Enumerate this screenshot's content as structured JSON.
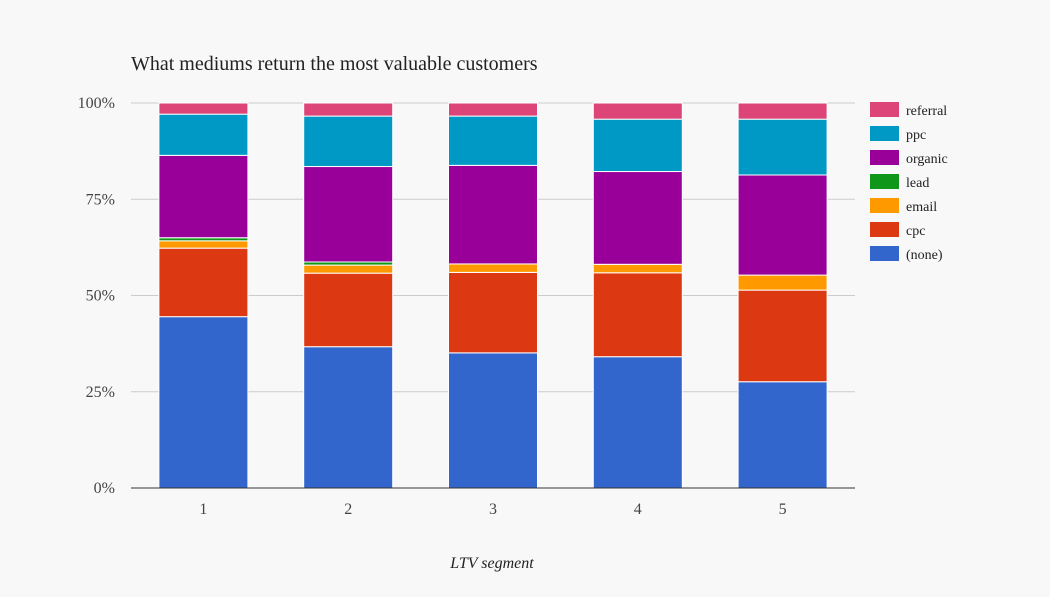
{
  "chart_data": {
    "type": "bar",
    "stacked": true,
    "normalized": true,
    "title": "What mediums return the most valuable customers",
    "xlabel": "LTV segment",
    "ylabel": "",
    "categories": [
      "1",
      "2",
      "3",
      "4",
      "5"
    ],
    "y_ticks": [
      "0%",
      "25%",
      "50%",
      "75%",
      "100%"
    ],
    "ylim": [
      0,
      100
    ],
    "grid": true,
    "legend_position": "right",
    "series": [
      {
        "name": "(none)",
        "color": "#3366cc",
        "values": [
          44.5,
          36.7,
          35.1,
          34.1,
          27.6
        ]
      },
      {
        "name": "cpc",
        "color": "#dc3912",
        "values": [
          17.8,
          19.1,
          20.9,
          21.8,
          23.8
        ]
      },
      {
        "name": "email",
        "color": "#ff9900",
        "values": [
          1.9,
          2.1,
          2.2,
          2.2,
          3.9
        ]
      },
      {
        "name": "lead",
        "color": "#109618",
        "values": [
          0.8,
          0.8,
          0.0,
          0.0,
          0.0
        ]
      },
      {
        "name": "organic",
        "color": "#990099",
        "values": [
          21.4,
          24.8,
          25.6,
          24.1,
          26.0
        ]
      },
      {
        "name": "ppc",
        "color": "#0099c6",
        "values": [
          10.7,
          13.1,
          12.8,
          13.6,
          14.5
        ]
      },
      {
        "name": "referral",
        "color": "#dd4477",
        "values": [
          2.9,
          3.4,
          3.4,
          4.2,
          4.2
        ]
      }
    ]
  }
}
